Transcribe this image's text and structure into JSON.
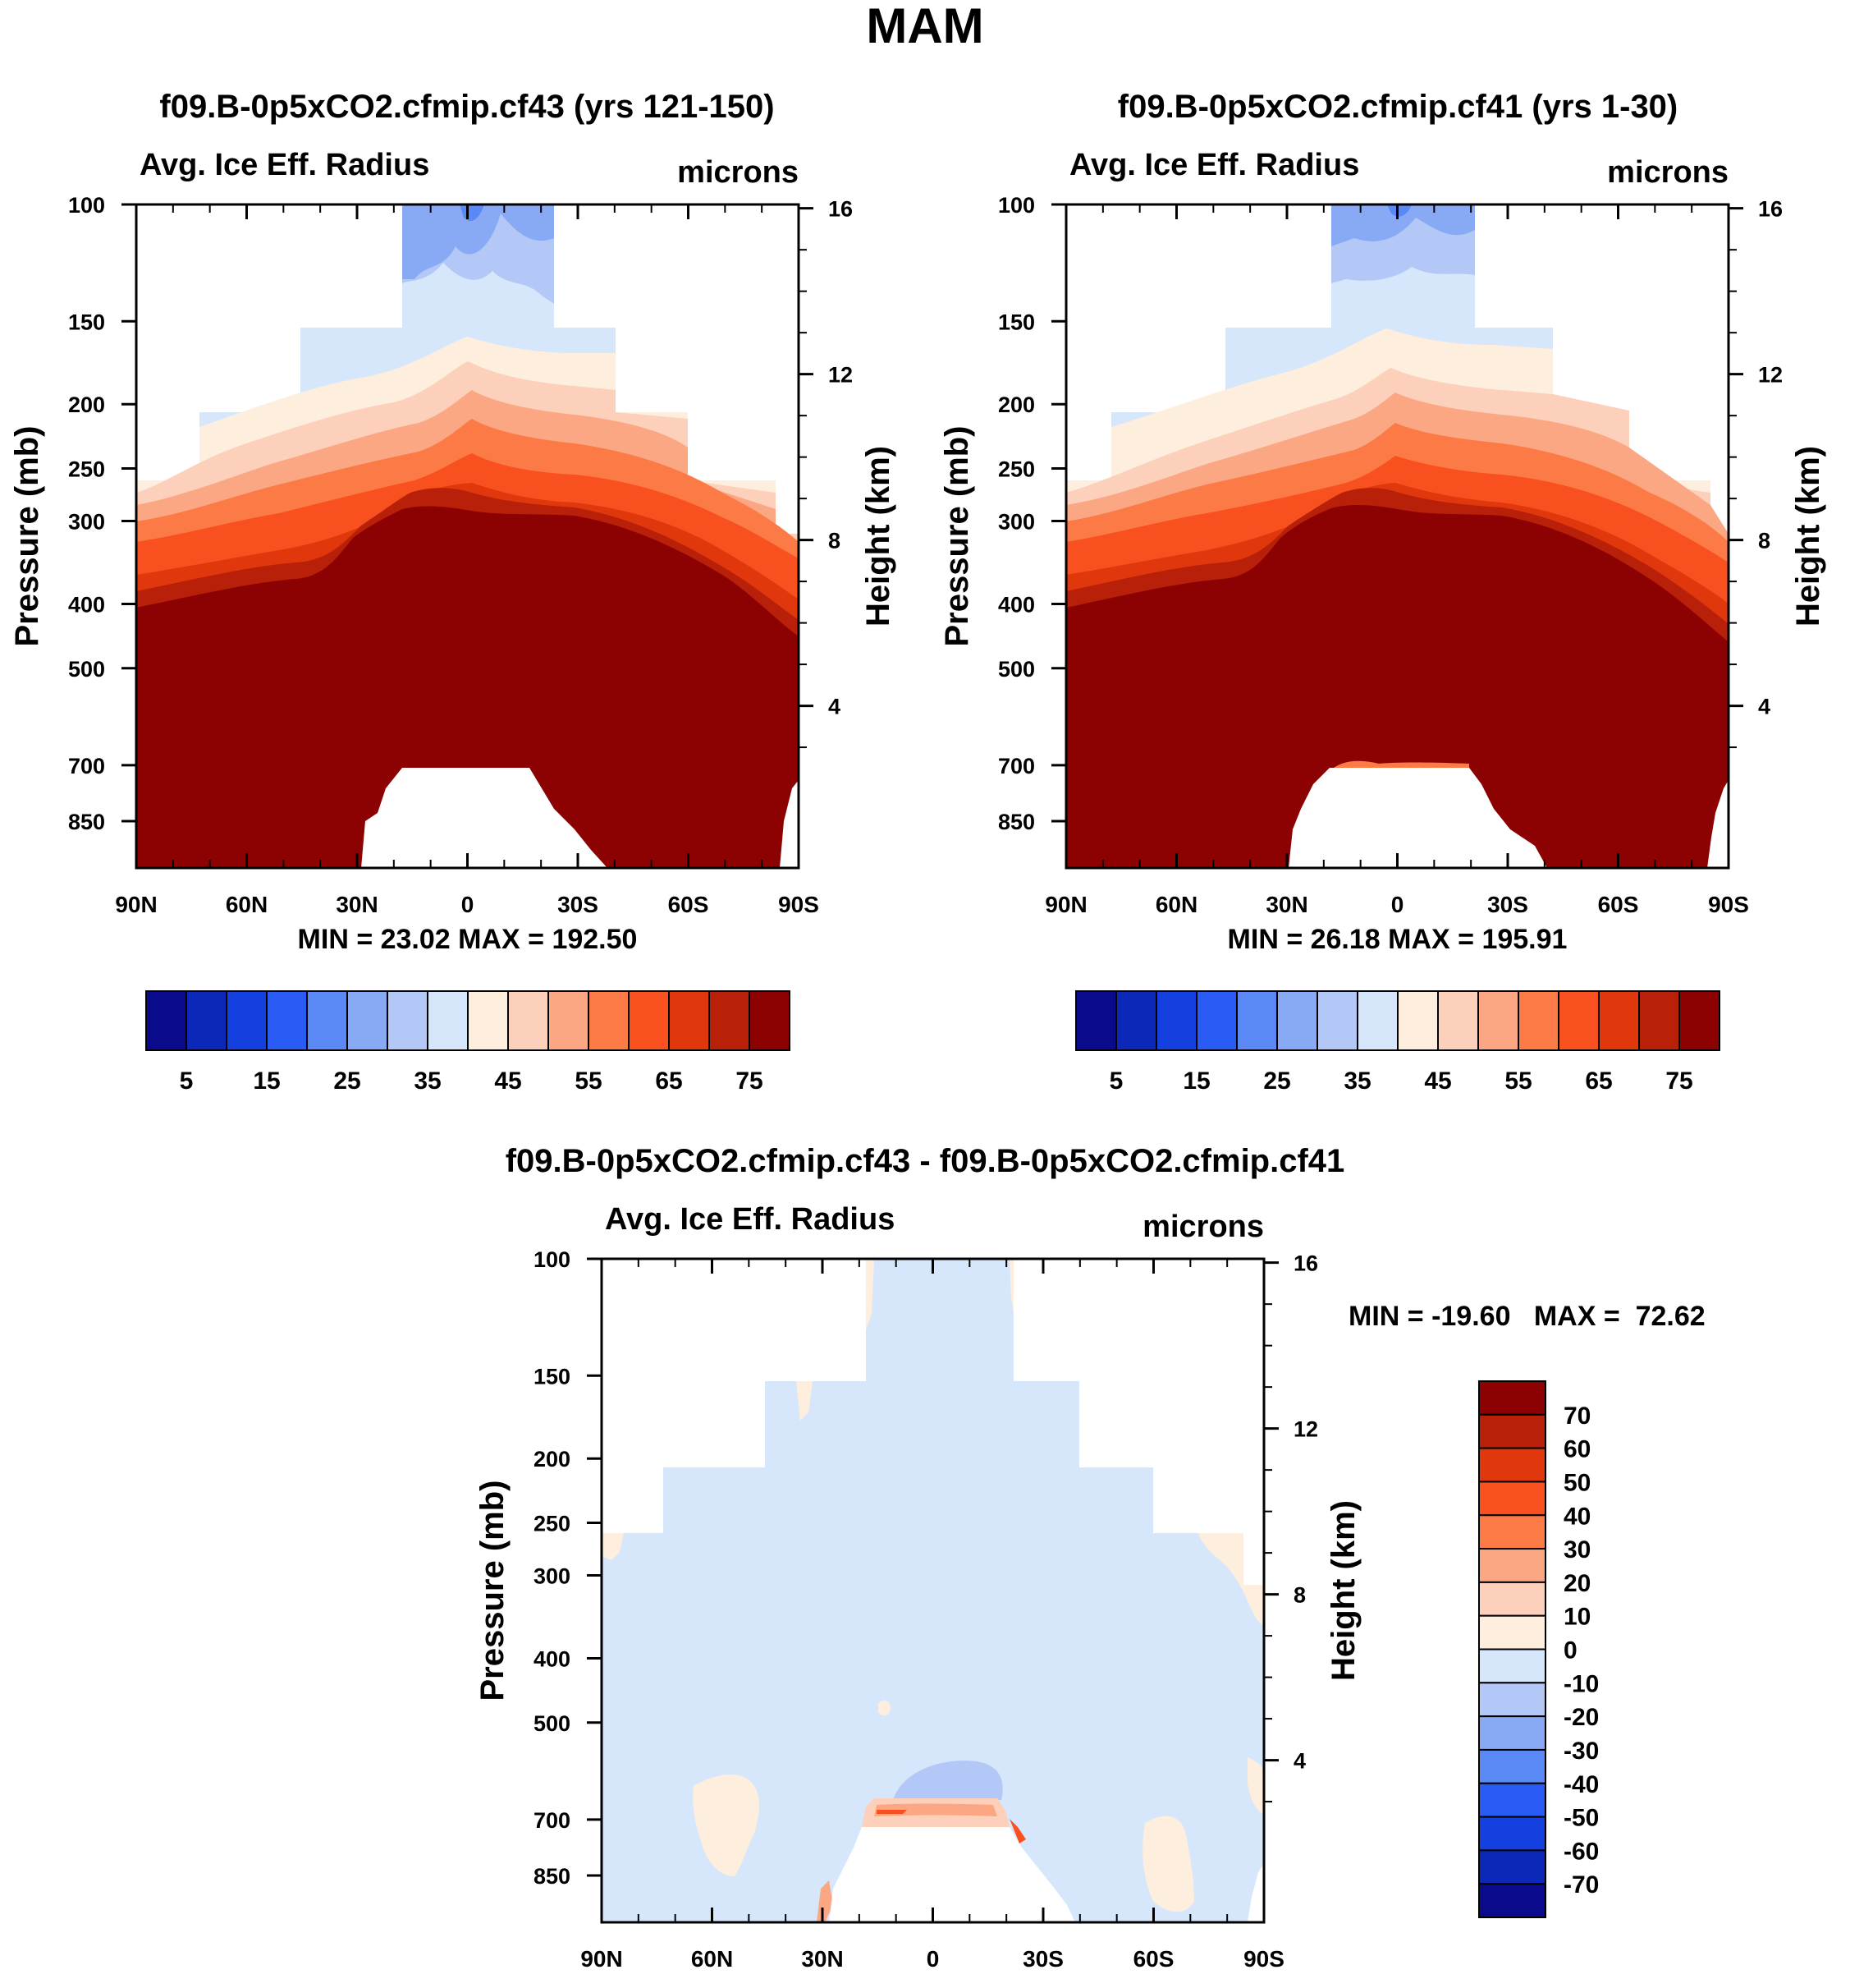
{
  "figure": {
    "title": "MAM"
  },
  "colors": {
    "abs_palette": [
      "#0a0a8c",
      "#0b28b8",
      "#1440e0",
      "#2a5cf5",
      "#5a88f5",
      "#88aaf5",
      "#b4c8f7",
      "#d7e7fb",
      "#fdeedd",
      "#fcd0ba",
      "#fba784",
      "#fc7a45",
      "#f8501f",
      "#e0380c",
      "#b8200a",
      "#8c0202"
    ],
    "diff_palette": [
      "#0a0a8c",
      "#0b28b8",
      "#1440e0",
      "#2a5cf5",
      "#5a88f5",
      "#88aaf5",
      "#b4c8f7",
      "#d7e7fb",
      "#fdeedd",
      "#fcd0ba",
      "#fba784",
      "#fc7a45",
      "#f8501f",
      "#e0380c",
      "#b8200a",
      "#8c0202"
    ]
  },
  "chart_data": [
    {
      "type": "heatmap",
      "title": "f09.B-0p5xCO2.cfmip.cf43 (yrs 121-150)",
      "left_label": "Avg. Ice Eff. Radius",
      "right_label": "microns",
      "ylabel": "Pressure (mb)",
      "ylabel_right": "Height (km)",
      "x_ticks": [
        "90N",
        "60N",
        "30N",
        "0",
        "30S",
        "60S",
        "90S"
      ],
      "y_ticks": [
        "100",
        "150",
        "200",
        "250",
        "300",
        "400",
        "500",
        "700",
        "850"
      ],
      "y_ticks_values": [
        100,
        150,
        200,
        250,
        300,
        400,
        500,
        700,
        850
      ],
      "height_ticks": [
        "16",
        "12",
        "8",
        "4"
      ],
      "height_values_km": [
        16,
        12,
        8,
        4
      ],
      "stats": "MIN =  23.02   MAX = 192.50",
      "min": 23.02,
      "max": 192.5,
      "colorbar_labels": [
        "5",
        "15",
        "25",
        "35",
        "45",
        "55",
        "65",
        "75"
      ],
      "levels": [
        5,
        10,
        15,
        20,
        25,
        30,
        35,
        40,
        45,
        50,
        55,
        60,
        65,
        70,
        75
      ]
    },
    {
      "type": "heatmap",
      "title": "f09.B-0p5xCO2.cfmip.cf41 (yrs 1-30)",
      "left_label": "Avg. Ice Eff. Radius",
      "right_label": "microns",
      "ylabel": "Pressure (mb)",
      "ylabel_right": "Height (km)",
      "x_ticks": [
        "90N",
        "60N",
        "30N",
        "0",
        "30S",
        "60S",
        "90S"
      ],
      "y_ticks": [
        "100",
        "150",
        "200",
        "250",
        "300",
        "400",
        "500",
        "700",
        "850"
      ],
      "y_ticks_values": [
        100,
        150,
        200,
        250,
        300,
        400,
        500,
        700,
        850
      ],
      "height_ticks": [
        "16",
        "12",
        "8",
        "4"
      ],
      "height_values_km": [
        16,
        12,
        8,
        4
      ],
      "stats": "MIN =  26.18   MAX = 195.91",
      "min": 26.18,
      "max": 195.91,
      "colorbar_labels": [
        "5",
        "15",
        "25",
        "35",
        "45",
        "55",
        "65",
        "75"
      ],
      "levels": [
        5,
        10,
        15,
        20,
        25,
        30,
        35,
        40,
        45,
        50,
        55,
        60,
        65,
        70,
        75
      ]
    },
    {
      "type": "heatmap",
      "title": "f09.B-0p5xCO2.cfmip.cf43 - f09.B-0p5xCO2.cfmip.cf41",
      "left_label": "Avg. Ice Eff. Radius",
      "right_label": "microns",
      "ylabel": "Pressure (mb)",
      "ylabel_right": "Height (km)",
      "x_ticks": [
        "90N",
        "60N",
        "30N",
        "0",
        "30S",
        "60S",
        "90S"
      ],
      "y_ticks": [
        "100",
        "150",
        "200",
        "250",
        "300",
        "400",
        "500",
        "700",
        "850"
      ],
      "y_ticks_values": [
        100,
        150,
        200,
        250,
        300,
        400,
        500,
        700,
        850
      ],
      "height_ticks": [
        "16",
        "12",
        "8",
        "4"
      ],
      "height_values_km": [
        16,
        12,
        8,
        4
      ],
      "stats": "MIN = -19.60   MAX =  72.62",
      "min": -19.6,
      "max": 72.62,
      "colorbar_labels": [
        "70",
        "60",
        "50",
        "40",
        "30",
        "20",
        "10",
        "0",
        "-10",
        "-20",
        "-30",
        "-40",
        "-50",
        "-60",
        "-70"
      ],
      "levels": [
        -70,
        -60,
        -50,
        -40,
        -30,
        -20,
        -10,
        0,
        10,
        20,
        30,
        40,
        50,
        60,
        70
      ]
    }
  ]
}
